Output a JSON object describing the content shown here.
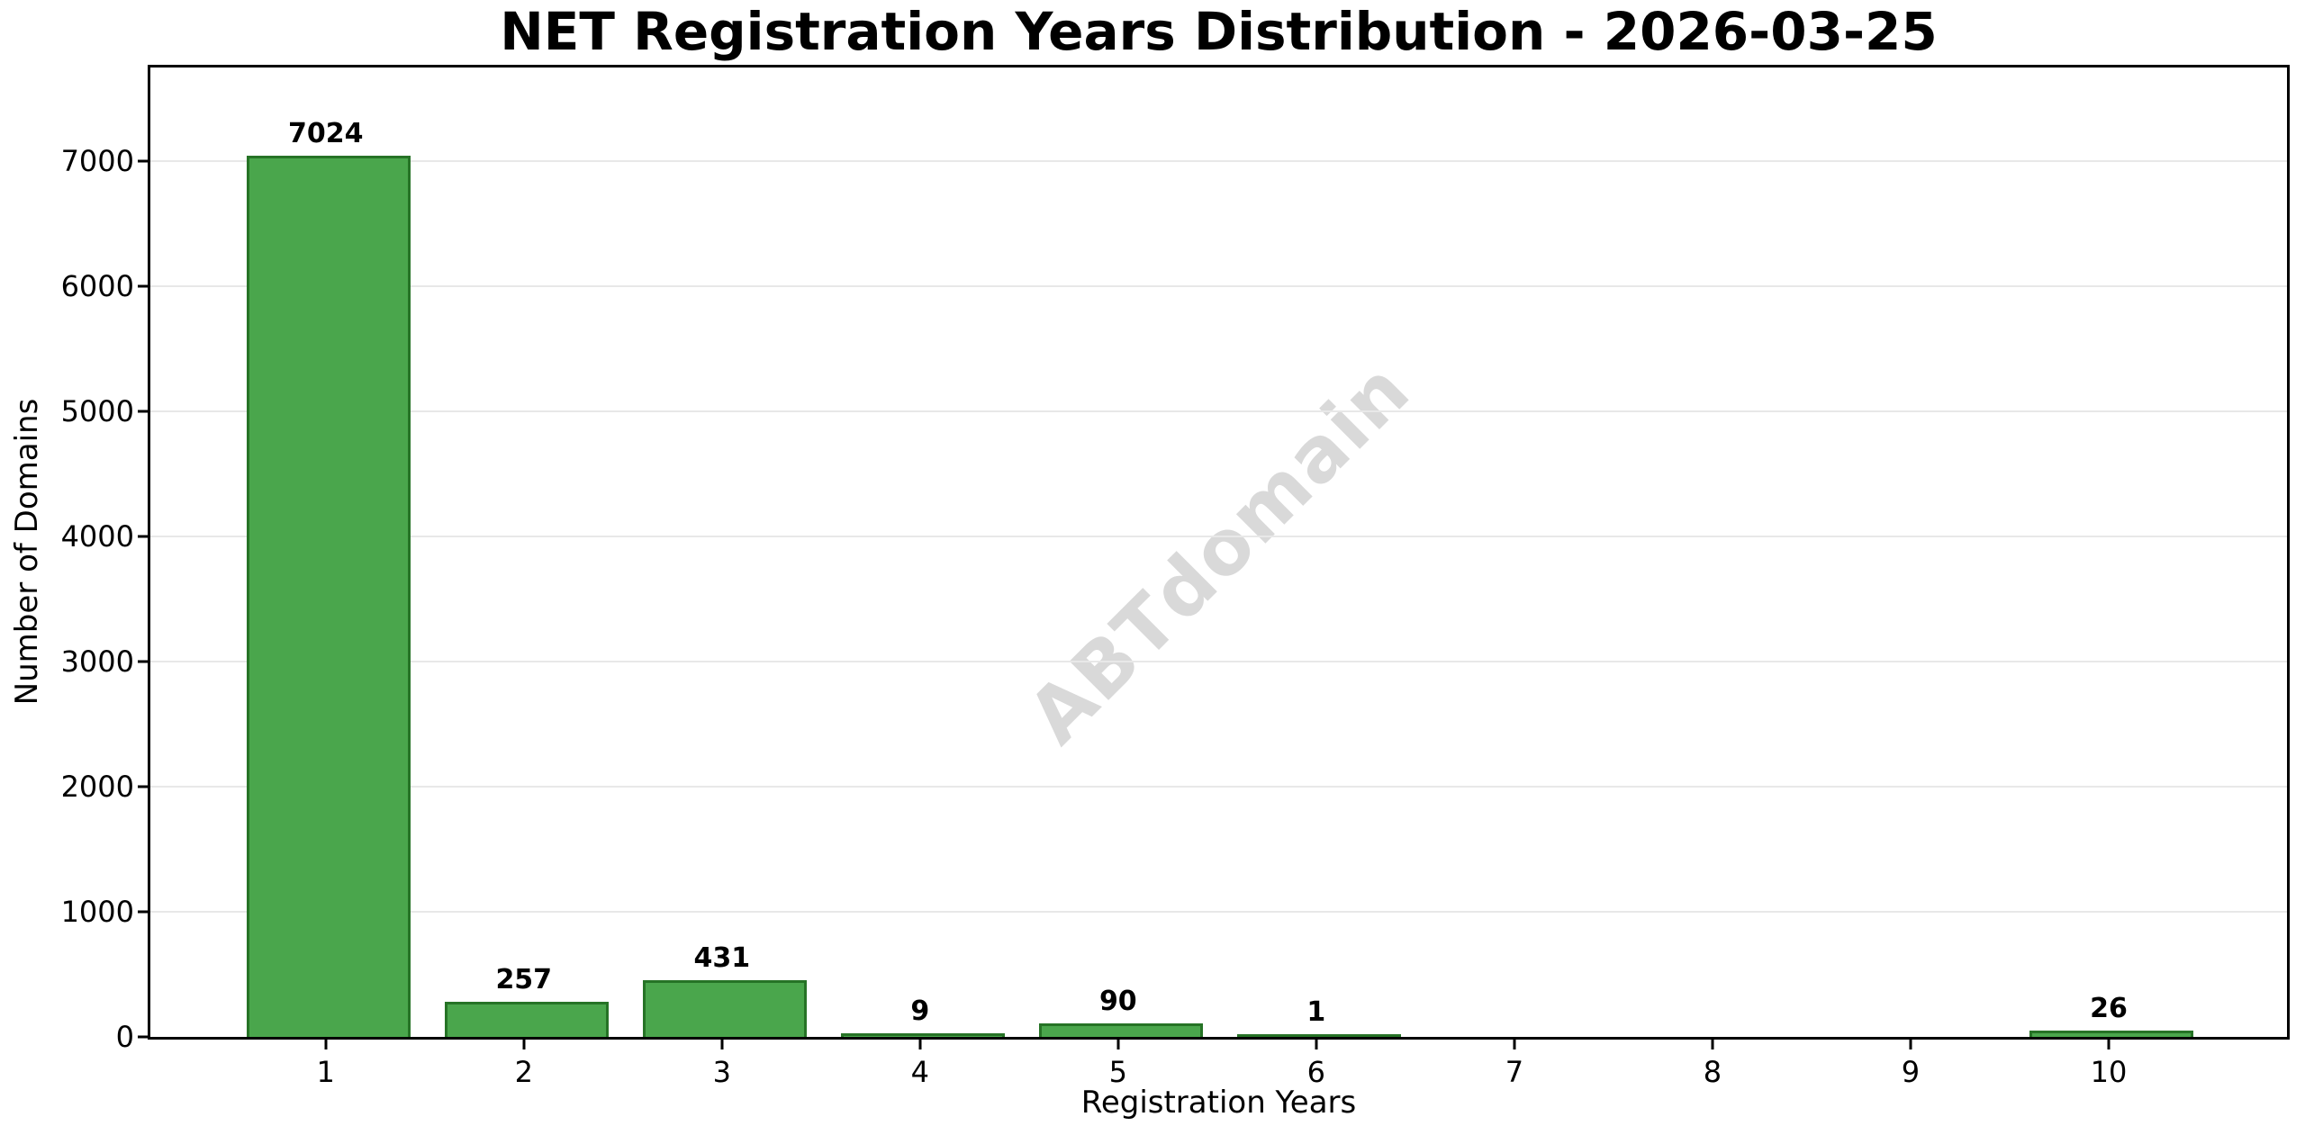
{
  "chart_data": {
    "type": "bar",
    "title": "NET Registration Years Distribution - 2026-03-25",
    "xlabel": "Registration Years",
    "ylabel": "Number of Domains",
    "categories": [
      "1",
      "2",
      "3",
      "4",
      "5",
      "6",
      "7",
      "8",
      "9",
      "10"
    ],
    "values": [
      7024,
      257,
      431,
      9,
      90,
      1,
      0,
      0,
      0,
      26
    ],
    "bar_labels": [
      "7024",
      "257",
      "431",
      "9",
      "90",
      "1",
      "",
      "",
      "",
      "26"
    ],
    "watermark": "ABTdomain",
    "xlim": [
      0.115,
      10.9
    ],
    "ylim": [
      0,
      7750
    ],
    "yticks": [
      0,
      1000,
      2000,
      3000,
      4000,
      5000,
      6000,
      7000
    ],
    "bar_width": 0.8,
    "grid": "horizontal",
    "legend": "none",
    "colors": {
      "bar_fill": "#4aa64c",
      "bar_edge": "#267326",
      "grid": "#e8e8e8",
      "axis": "#000000",
      "text": "#000000",
      "watermark": "#d9d9d9",
      "background": "#ffffff"
    }
  }
}
